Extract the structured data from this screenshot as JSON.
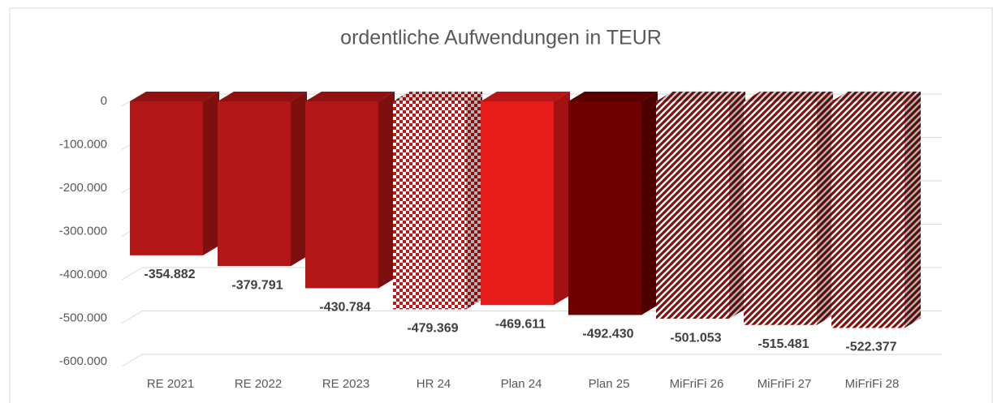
{
  "chart_data": {
    "type": "bar3d",
    "title": "ordentliche Aufwendungen in TEUR",
    "categories": [
      "RE 2021",
      "RE 2022",
      "RE 2023",
      "HR 24",
      "Plan 24",
      "Plan 25",
      "MiFriFi 26",
      "MiFriFi 27",
      "MiFriFi 28"
    ],
    "values": [
      -354882,
      -379791,
      -430784,
      -479369,
      -469611,
      -492430,
      -501053,
      -515481,
      -522377
    ],
    "value_labels": [
      "-354.882",
      "-379.791",
      "-430.784",
      "-479.369",
      "-469.611",
      "-492.430",
      "-501.053",
      "-515.481",
      "-522.377"
    ],
    "colors": [
      "#b31616",
      "#b31616",
      "#b31616",
      "#c01515",
      "#e81b1b",
      "#6e0000",
      "#8f0a0a",
      "#8f0a0a",
      "#8f0a0a"
    ],
    "patterns": [
      "solid",
      "solid",
      "solid",
      "checker",
      "solid",
      "solid",
      "diagonal",
      "diagonal",
      "diagonal"
    ],
    "ylim": [
      -600000,
      0
    ],
    "yticks": [
      0,
      {
        "value": -100000,
        "label": "-100.000"
      },
      {
        "value": -200000,
        "label": "-200.000"
      },
      {
        "value": -300000,
        "label": "-300.000"
      },
      {
        "value": -400000,
        "label": "-400.000"
      },
      {
        "value": -500000,
        "label": "-500.000"
      },
      {
        "value": -600000,
        "label": "-600.000"
      }
    ],
    "grid": true
  }
}
